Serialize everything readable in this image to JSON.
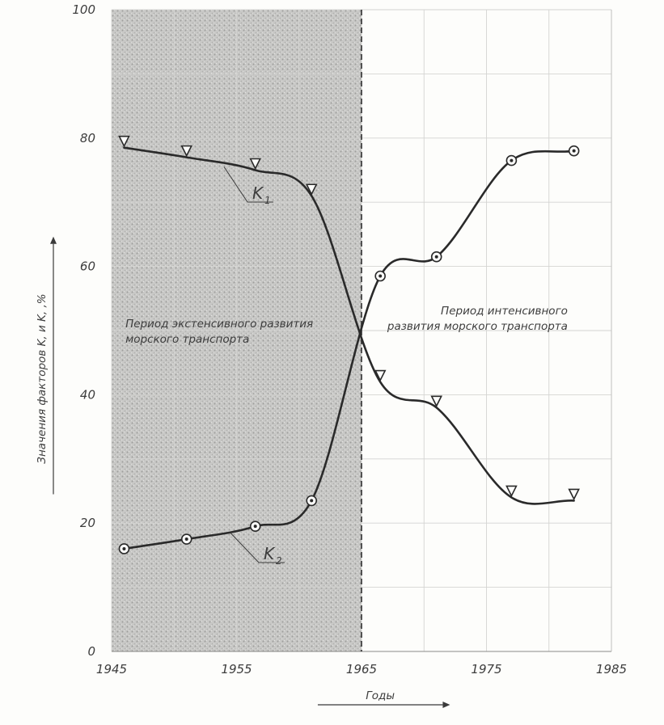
{
  "chart_data": {
    "type": "line",
    "title": "",
    "xlabel": "Годы",
    "ylabel": "Значения факторов K, и K, ,%",
    "xlim": [
      1945,
      1985
    ],
    "ylim": [
      0,
      100
    ],
    "x_ticks": [
      "1945",
      "1955",
      "1965",
      "1975",
      "1985"
    ],
    "y_ticks": [
      "0",
      "20",
      "40",
      "60",
      "80",
      "100"
    ],
    "grid": true,
    "shaded_region": {
      "from": 1945,
      "to": 1965
    },
    "divider_x": 1965,
    "series": [
      {
        "name": "K",
        "subscript": "1",
        "marker": "triangle",
        "x": [
          1946,
          1951,
          1956.5,
          1961,
          1966.5,
          1971,
          1977,
          1982
        ],
        "y": [
          78.5,
          77,
          75,
          71,
          42,
          38,
          24,
          23.5
        ]
      },
      {
        "name": "K",
        "subscript": "2",
        "marker": "circle",
        "x": [
          1946,
          1951,
          1956.5,
          1961,
          1966.5,
          1971,
          1977,
          1982
        ],
        "y": [
          16,
          17.5,
          19.5,
          23.5,
          58.5,
          61.5,
          76.5,
          78
        ]
      }
    ],
    "annotations": [
      {
        "lines": [
          "Период экстенсивного развития",
          "морского транспорта"
        ],
        "anchor_x": 1945.2,
        "anchor_y": 50.5
      },
      {
        "lines": [
          "Период интенсивного",
          "развития морского транспорта"
        ],
        "anchor_x": 1981.5,
        "anchor_y": 52.5
      }
    ]
  }
}
